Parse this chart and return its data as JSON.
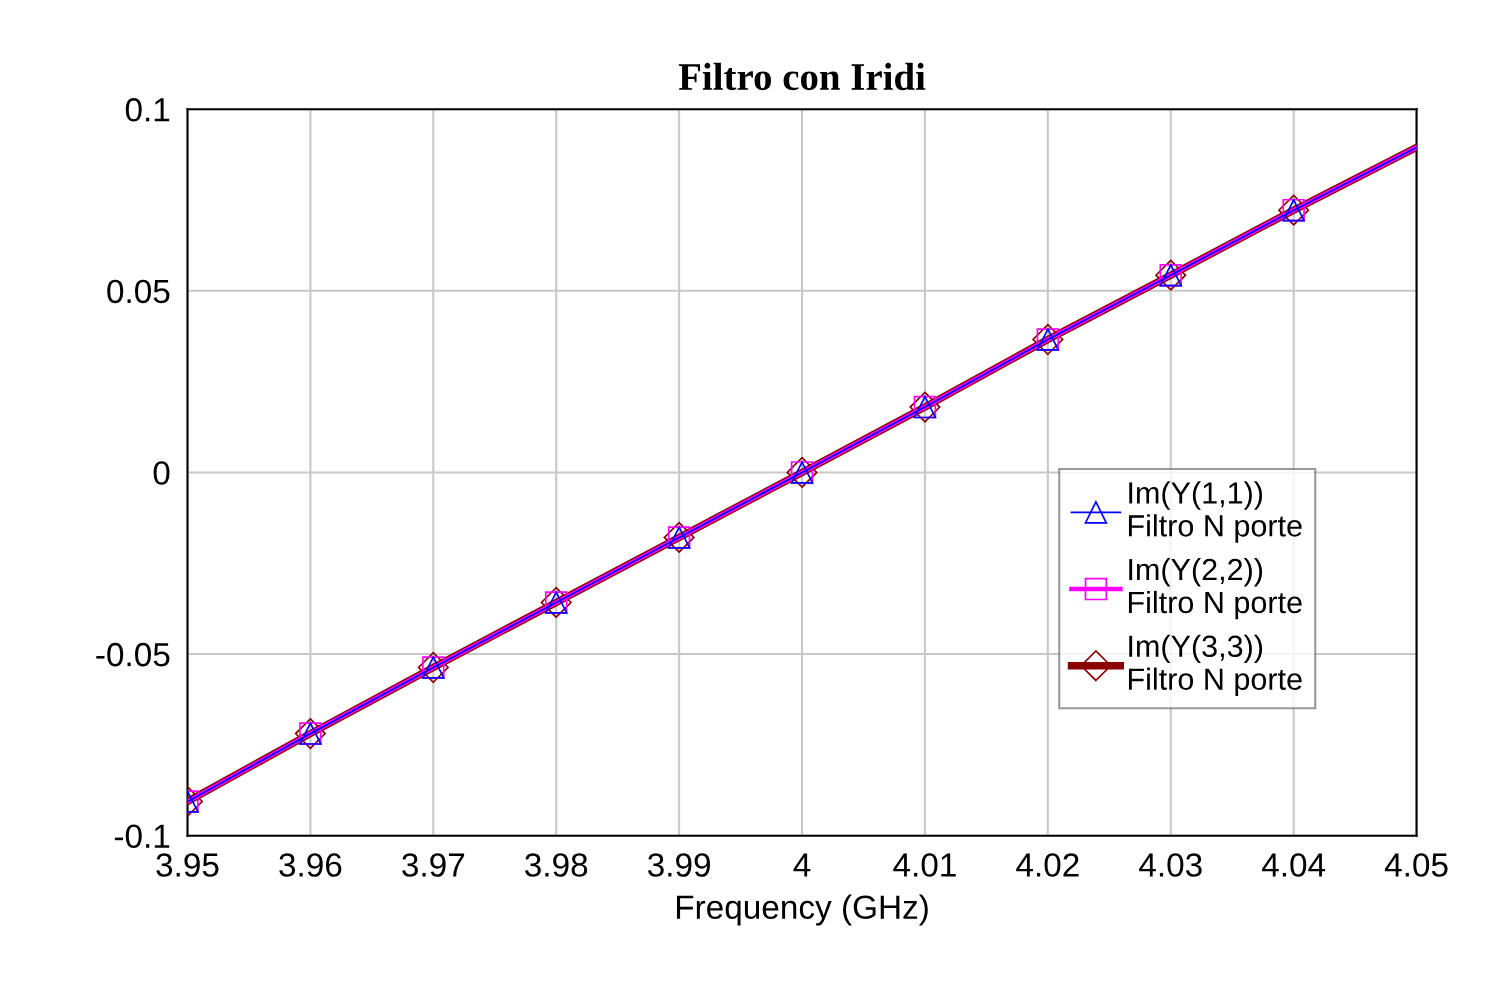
{
  "chart_data": {
    "type": "line",
    "title": "Filtro con Iridi",
    "xlabel": "Frequency (GHz)",
    "x": [
      3.95,
      3.96,
      3.97,
      3.98,
      3.99,
      4.0,
      4.01,
      4.02,
      4.03,
      4.04,
      4.05
    ],
    "series": [
      {
        "name": "Im(Y(1,1))\nFiltro N porte",
        "color": "#0000ff",
        "marker": "triangle",
        "values": [
          -0.0906,
          -0.0719,
          -0.0537,
          -0.0358,
          -0.0179,
          0.0,
          0.018,
          0.0366,
          0.0543,
          0.0722,
          0.0895
        ]
      },
      {
        "name": "Im(Y(2,2))\nFiltro N porte",
        "color": "#ff00ff",
        "marker": "square",
        "values": [
          -0.0906,
          -0.0719,
          -0.0537,
          -0.0358,
          -0.0179,
          0.0,
          0.018,
          0.0366,
          0.0543,
          0.0722,
          0.0895
        ]
      },
      {
        "name": "Im(Y(3,3))\nFiltro N porte",
        "color": "#8b0000",
        "marker": "diamond",
        "values": [
          -0.0906,
          -0.0719,
          -0.0537,
          -0.0358,
          -0.0179,
          0.0,
          0.018,
          0.0366,
          0.0543,
          0.0722,
          0.0895
        ]
      }
    ],
    "xlim": [
      3.95,
      4.05
    ],
    "xticks": [
      3.95,
      3.96,
      3.97,
      3.98,
      3.99,
      4,
      4.01,
      4.02,
      4.03,
      4.04,
      4.05
    ],
    "ylim": [
      -0.1,
      0.1
    ],
    "yticks": [
      -0.1,
      -0.05,
      0,
      0.05,
      0.1
    ],
    "grid": true,
    "legend": "right",
    "line_style": "solid"
  }
}
